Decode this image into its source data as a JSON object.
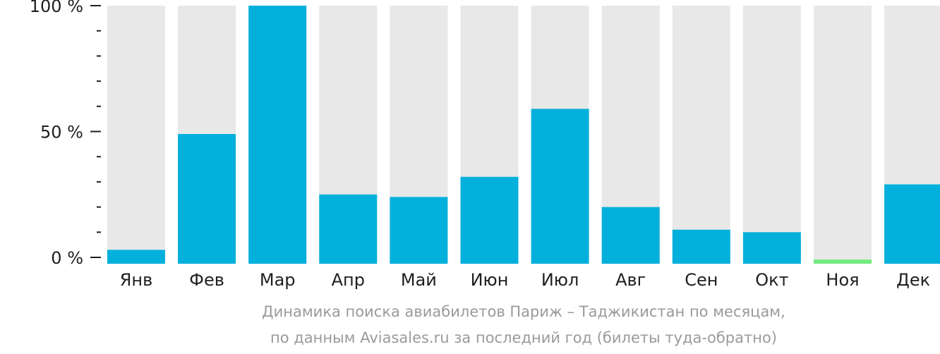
{
  "chart_data": {
    "type": "bar",
    "categories": [
      "Янв",
      "Фев",
      "Мар",
      "Апр",
      "Май",
      "Июн",
      "Июл",
      "Авг",
      "Сен",
      "Окт",
      "Ноя",
      "Дек"
    ],
    "values": [
      3,
      49,
      100,
      25,
      24,
      32,
      59,
      20,
      11,
      10,
      0,
      29
    ],
    "ylim": [
      0,
      100
    ],
    "yticks": [
      {
        "value": 0,
        "label": "0 %"
      },
      {
        "value": 50,
        "label": "50 %"
      },
      {
        "value": 100,
        "label": "100 %"
      }
    ],
    "minor_ytick_step": 10,
    "grid": false,
    "caption": [
      "Динамика поиска авиабилетов Париж – Таджикистан по месяцам,",
      "по данным Aviasales.ru за последний год (билеты туда-обратно)"
    ]
  },
  "colors": {
    "bar": "#03b0dc",
    "bar_background": "#e8e8e8",
    "zero_marker": "#75ea81",
    "axis": "#1f1f1f",
    "caption": "#9a9a9a"
  }
}
